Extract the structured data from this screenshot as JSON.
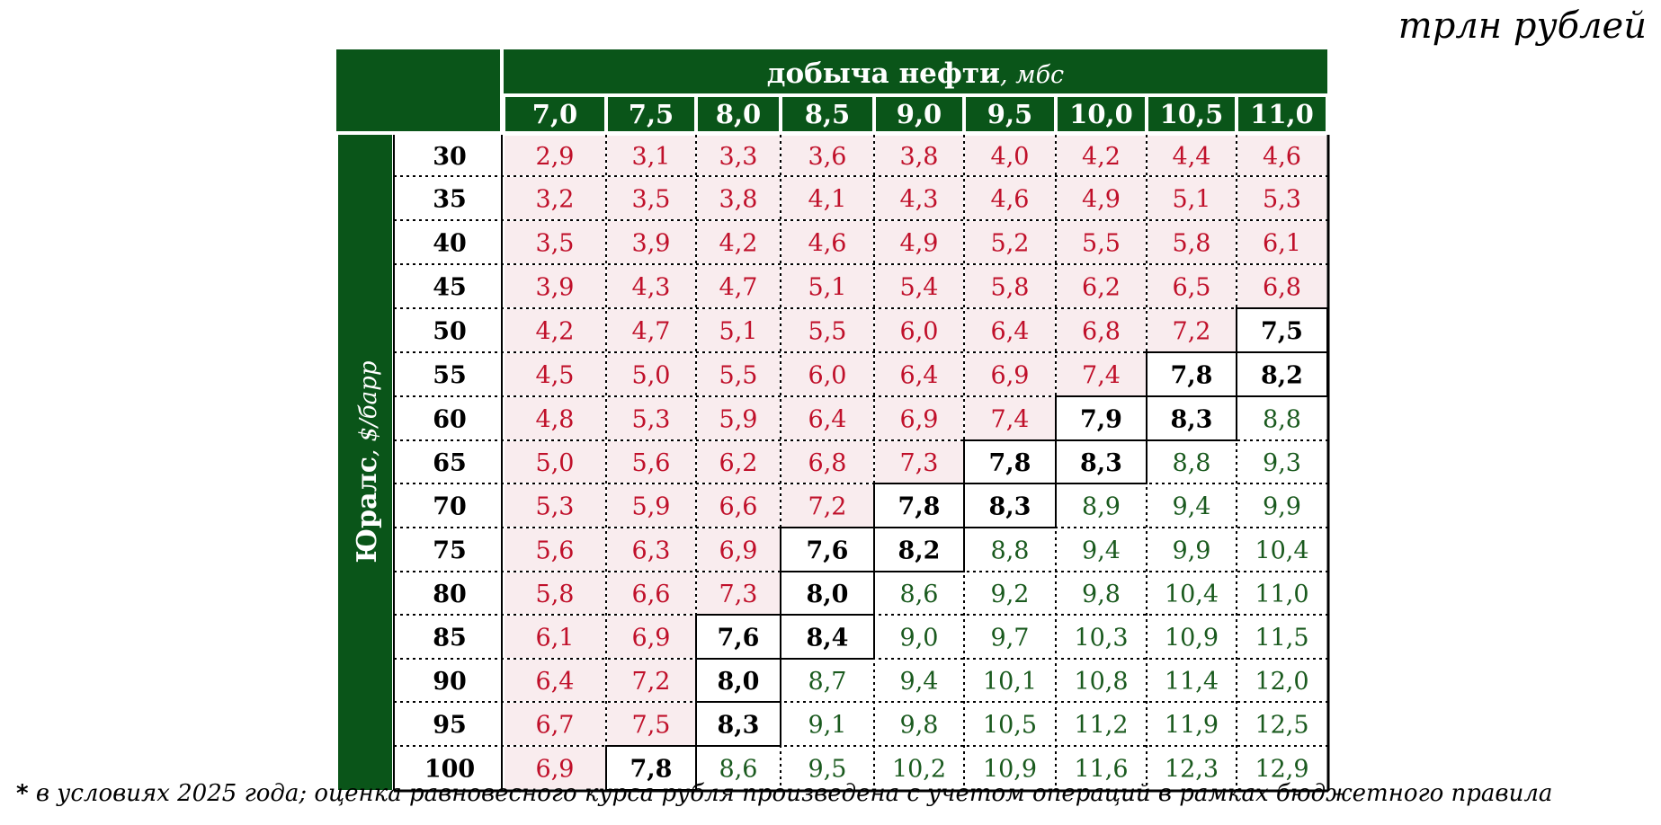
{
  "unit_label": "трлн рублей",
  "footnote": {
    "marker": "*",
    "text": " в условиях 2025 года; оценка равновесного курса рубля произведена с учетом операций в рамках бюджетного правила"
  },
  "colors": {
    "header_green": "#0a5519",
    "red_text": "#c0102a",
    "red_fill": "#f9ecee",
    "green_text": "#1a5a1e",
    "neutral_text": "#000000"
  },
  "chart_data": {
    "type": "heatmap",
    "title": "",
    "xlabel": "добыча нефти",
    "xlabel_unit": ", мбс",
    "ylabel": "Юралс",
    "ylabel_unit": ", $/барр",
    "x": [
      "7,0",
      "7,5",
      "8,0",
      "8,5",
      "9,0",
      "9,5",
      "10,0",
      "10,5",
      "11,0"
    ],
    "y": [
      "30",
      "35",
      "40",
      "45",
      "50",
      "55",
      "60",
      "65",
      "70",
      "75",
      "80",
      "85",
      "90",
      "95",
      "100"
    ],
    "values": [
      [
        "2,9",
        "3,1",
        "3,3",
        "3,6",
        "3,8",
        "4,0",
        "4,2",
        "4,4",
        "4,6"
      ],
      [
        "3,2",
        "3,5",
        "3,8",
        "4,1",
        "4,3",
        "4,6",
        "4,9",
        "5,1",
        "5,3"
      ],
      [
        "3,5",
        "3,9",
        "4,2",
        "4,6",
        "4,9",
        "5,2",
        "5,5",
        "5,8",
        "6,1"
      ],
      [
        "3,9",
        "4,3",
        "4,7",
        "5,1",
        "5,4",
        "5,8",
        "6,2",
        "6,5",
        "6,8"
      ],
      [
        "4,2",
        "4,7",
        "5,1",
        "5,5",
        "6,0",
        "6,4",
        "6,8",
        "7,2",
        "7,5"
      ],
      [
        "4,5",
        "5,0",
        "5,5",
        "6,0",
        "6,4",
        "6,9",
        "7,4",
        "7,8",
        "8,2"
      ],
      [
        "4,8",
        "5,3",
        "5,9",
        "6,4",
        "6,9",
        "7,4",
        "7,9",
        "8,3",
        "8,8"
      ],
      [
        "5,0",
        "5,6",
        "6,2",
        "6,8",
        "7,3",
        "7,8",
        "8,3",
        "8,8",
        "9,3"
      ],
      [
        "5,3",
        "5,9",
        "6,6",
        "7,2",
        "7,8",
        "8,3",
        "8,9",
        "9,4",
        "9,9"
      ],
      [
        "5,6",
        "6,3",
        "6,9",
        "7,6",
        "8,2",
        "8,8",
        "9,4",
        "9,9",
        "10,4"
      ],
      [
        "5,8",
        "6,6",
        "7,3",
        "8,0",
        "8,6",
        "9,2",
        "9,8",
        "10,4",
        "11,0"
      ],
      [
        "6,1",
        "6,9",
        "7,6",
        "8,4",
        "9,0",
        "9,7",
        "10,3",
        "10,9",
        "11,5"
      ],
      [
        "6,4",
        "7,2",
        "8,0",
        "8,7",
        "9,4",
        "10,1",
        "10,8",
        "11,4",
        "12,0"
      ],
      [
        "6,7",
        "7,5",
        "8,3",
        "9,1",
        "9,8",
        "10,5",
        "11,2",
        "11,9",
        "12,5"
      ],
      [
        "6,9",
        "7,8",
        "8,6",
        "9,5",
        "10,2",
        "10,9",
        "11,6",
        "12,3",
        "12,9"
      ]
    ],
    "categories_by_cell": "r = below balance (red), b = balance zone (bold black, boxed), g = above balance (green)",
    "cell_class": [
      "rrrrrrrrr",
      "rrrrrrrrr",
      "rrrrrrrrr",
      "rrrrrrrrr",
      "rrrrrrrrb",
      "rrrrrrrbb",
      "rrrrrrbbg",
      "rrrrrbbgg",
      "rrrrbbggg",
      "rrrbbgggg",
      "rrrbggggg",
      "rrbbggggg",
      "rrbgggggg",
      "rrbgggggg",
      "rbggggggg"
    ]
  }
}
